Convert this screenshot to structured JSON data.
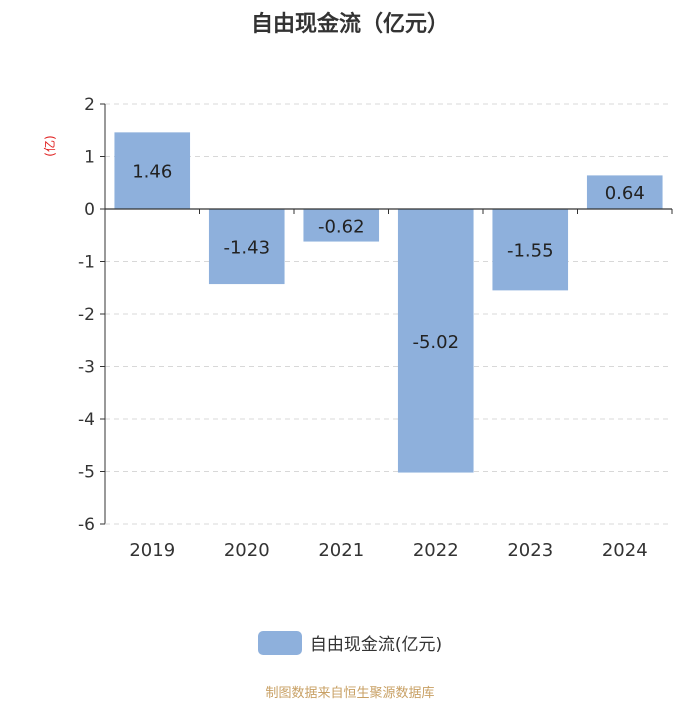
{
  "chart_data": {
    "type": "bar",
    "title": "自由现金流（亿元）",
    "ylabel": "(亿)",
    "categories": [
      "2019",
      "2020",
      "2021",
      "2022",
      "2023",
      "2024"
    ],
    "series": [
      {
        "name": "自由现金流(亿元)",
        "values": [
          1.46,
          -1.43,
          -0.62,
          -5.02,
          -1.55,
          0.64
        ]
      }
    ],
    "ylim": [
      -6,
      2
    ],
    "yticks": [
      2,
      1,
      0,
      -1,
      -2,
      -3,
      -4,
      -5,
      -6
    ],
    "grid": true,
    "legend_position": "bottom-center",
    "bar_color": "#8EB0DC"
  },
  "footer": "制图数据来自恒生聚源数据库"
}
